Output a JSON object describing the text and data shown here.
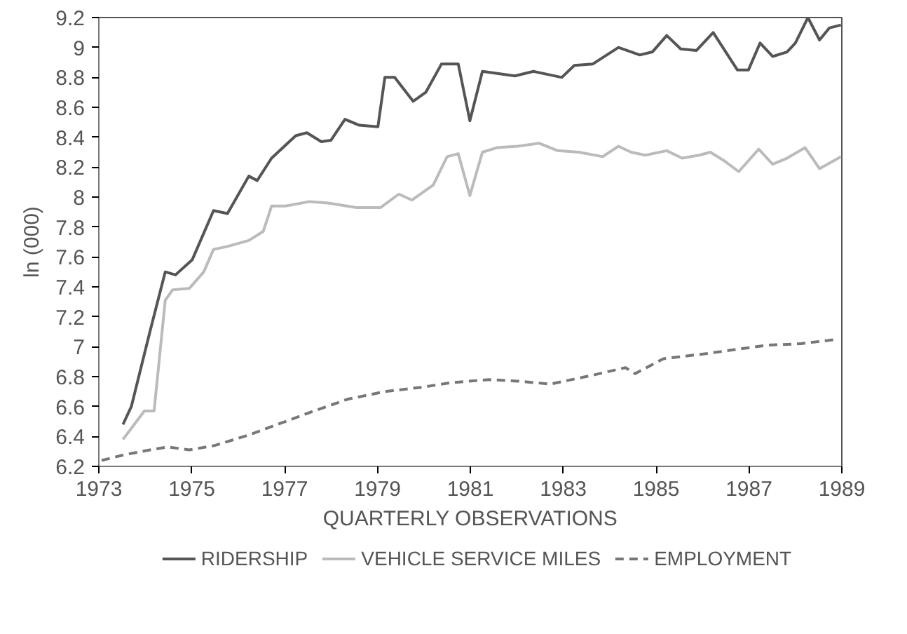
{
  "chart_data": {
    "type": "line",
    "xlabel": "QUARTERLY OBSERVATIONS",
    "ylabel": "ln (000)",
    "xlim": [
      1973,
      1989
    ],
    "xticks": [
      1973,
      1975,
      1977,
      1979,
      1981,
      1983,
      1985,
      1987,
      1989
    ],
    "ylim": [
      6.2,
      9.2
    ],
    "yticks": [
      6.2,
      6.4,
      6.6,
      6.8,
      7,
      7.2,
      7.4,
      7.6,
      7.8,
      8,
      8.2,
      8.4,
      8.6,
      8.8,
      9,
      9.2
    ],
    "grid": false,
    "legend": "bottom",
    "series": [
      {
        "name": "RIDERSHIP",
        "color": "#555555",
        "line_style": "solid",
        "x": [
          1973.52,
          1973.7,
          1974.1,
          1974.43,
          1974.65,
          1975.01,
          1975.47,
          1975.77,
          1976.23,
          1976.41,
          1976.72,
          1977.24,
          1977.48,
          1977.79,
          1978.0,
          1978.3,
          1978.61,
          1979.01,
          1979.16,
          1979.37,
          1979.77,
          1980.04,
          1980.38,
          1980.74,
          1980.99,
          1981.26,
          1981.96,
          1982.36,
          1982.97,
          1983.24,
          1983.64,
          1984.19,
          1984.65,
          1984.92,
          1985.23,
          1985.53,
          1985.87,
          1986.23,
          1986.75,
          1986.99,
          1987.24,
          1987.51,
          1987.82,
          1988.0,
          1988.27,
          1988.52,
          1988.73,
          1988.98
        ],
        "values": [
          6.48,
          6.6,
          7.1,
          7.5,
          7.48,
          7.58,
          7.91,
          7.89,
          8.14,
          8.11,
          8.26,
          8.41,
          8.43,
          8.37,
          8.38,
          8.52,
          8.48,
          8.47,
          8.8,
          8.8,
          8.64,
          8.7,
          8.89,
          8.89,
          8.51,
          8.84,
          8.81,
          8.84,
          8.8,
          8.88,
          8.89,
          9.0,
          8.95,
          8.97,
          9.08,
          8.99,
          8.98,
          9.1,
          8.85,
          8.85,
          9.03,
          8.94,
          8.97,
          9.03,
          9.2,
          9.05,
          9.13,
          9.15
        ]
      },
      {
        "name": "VEHICLE SERVICE MILES",
        "color": "#bbbbbb",
        "line_style": "solid",
        "x": [
          1973.52,
          1973.98,
          1974.19,
          1974.43,
          1974.59,
          1974.95,
          1975.26,
          1975.47,
          1975.77,
          1976.23,
          1976.54,
          1976.72,
          1977.02,
          1977.54,
          1977.94,
          1978.55,
          1979.07,
          1979.46,
          1979.74,
          1980.2,
          1980.5,
          1980.74,
          1980.99,
          1981.26,
          1981.57,
          1982.02,
          1982.48,
          1982.88,
          1983.34,
          1983.85,
          1984.19,
          1984.46,
          1984.77,
          1985.23,
          1985.56,
          1985.93,
          1986.17,
          1986.48,
          1986.78,
          1987.21,
          1987.51,
          1987.82,
          1988.21,
          1988.52,
          1988.98
        ],
        "values": [
          6.38,
          6.57,
          6.57,
          7.31,
          7.38,
          7.39,
          7.5,
          7.65,
          7.67,
          7.71,
          7.77,
          7.94,
          7.94,
          7.97,
          7.96,
          7.93,
          7.93,
          8.02,
          7.98,
          8.08,
          8.27,
          8.29,
          8.01,
          8.3,
          8.33,
          8.34,
          8.36,
          8.31,
          8.3,
          8.27,
          8.34,
          8.3,
          8.28,
          8.31,
          8.26,
          8.28,
          8.3,
          8.24,
          8.17,
          8.32,
          8.22,
          8.26,
          8.33,
          8.19,
          8.27
        ]
      },
      {
        "name": "EMPLOYMENT",
        "color": "#777777",
        "line_style": "dashed",
        "x": [
          1973.06,
          1973.58,
          1974.1,
          1974.49,
          1974.95,
          1975.5,
          1976.23,
          1976.93,
          1977.63,
          1978.37,
          1979.16,
          1979.98,
          1980.59,
          1981.41,
          1982.02,
          1982.73,
          1983.64,
          1984.34,
          1984.55,
          1985.16,
          1985.99,
          1986.69,
          1987.39,
          1988.12,
          1988.91
        ],
        "values": [
          6.24,
          6.28,
          6.31,
          6.33,
          6.31,
          6.34,
          6.41,
          6.49,
          6.57,
          6.65,
          6.7,
          6.73,
          6.76,
          6.78,
          6.77,
          6.75,
          6.81,
          6.86,
          6.82,
          6.92,
          6.95,
          6.98,
          7.01,
          7.02,
          7.05
        ]
      }
    ]
  }
}
